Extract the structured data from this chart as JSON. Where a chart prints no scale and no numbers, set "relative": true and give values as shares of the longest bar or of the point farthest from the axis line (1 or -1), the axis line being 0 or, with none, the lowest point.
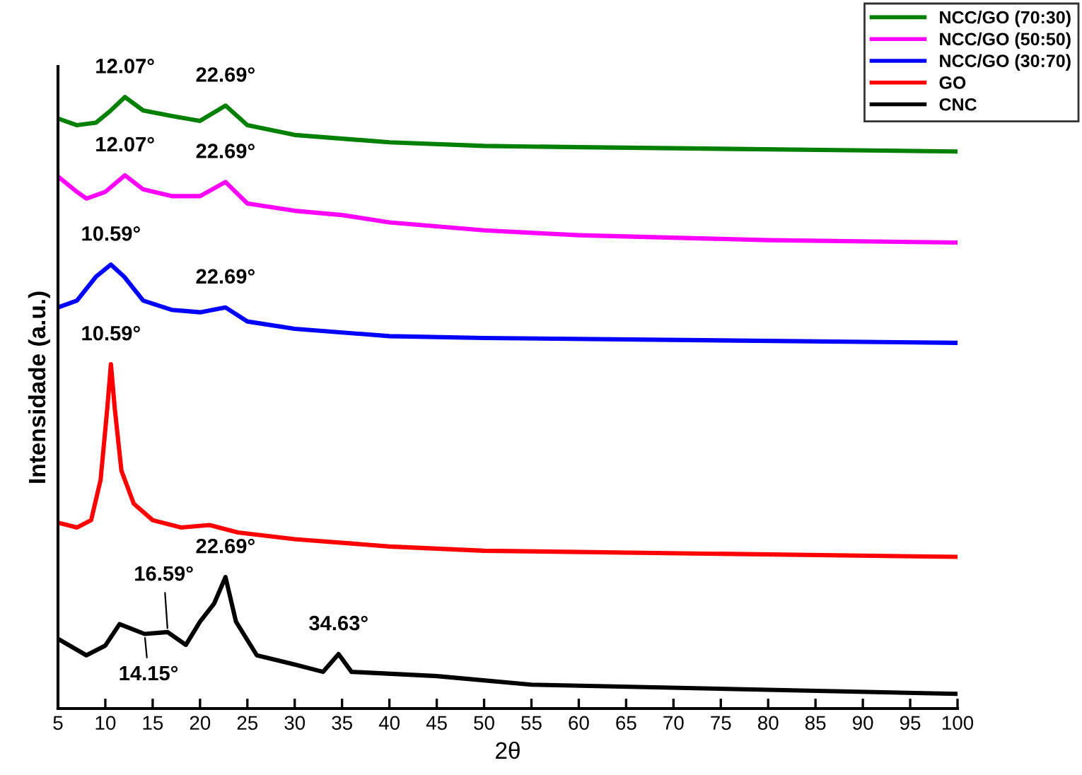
{
  "chart_data": {
    "type": "line",
    "relative": true,
    "xlabel": "2θ",
    "ylabel": "Intensidade (a.u.)",
    "xlim": [
      5,
      100
    ],
    "xticks": [
      5,
      10,
      15,
      20,
      25,
      30,
      35,
      40,
      45,
      50,
      55,
      60,
      65,
      70,
      75,
      80,
      85,
      90,
      95,
      100
    ],
    "legend": "top right",
    "grid": false,
    "marker": "none",
    "line_style": "solid",
    "series": [
      {
        "name": "NCC/GO (70:30)",
        "color": "#008000",
        "x": [
          5,
          7,
          9,
          10.5,
          12.07,
          14,
          17,
          20,
          22.69,
          25,
          30,
          40,
          50,
          60,
          100
        ],
        "values": [
          0.965,
          0.954,
          0.958,
          0.977,
          1.0,
          0.978,
          0.969,
          0.961,
          0.986,
          0.954,
          0.938,
          0.926,
          0.92,
          0.918,
          0.911
        ]
      },
      {
        "name": "NCC/GO (50:50)",
        "color": "#ff00ff",
        "x": [
          5,
          7,
          8,
          10,
          12.07,
          14,
          17,
          20,
          22.69,
          25,
          30,
          35,
          40,
          50,
          60,
          80,
          100
        ],
        "values": [
          0.87,
          0.845,
          0.834,
          0.845,
          0.872,
          0.849,
          0.838,
          0.838,
          0.861,
          0.826,
          0.814,
          0.807,
          0.795,
          0.782,
          0.774,
          0.766,
          0.762
        ]
      },
      {
        "name": "NCC/GO (30:70)",
        "color": "#0000ff",
        "x": [
          5,
          7,
          9,
          10.59,
          12,
          14,
          17,
          20,
          22.69,
          25,
          30,
          40,
          50,
          100
        ],
        "values": [
          0.656,
          0.667,
          0.706,
          0.726,
          0.706,
          0.667,
          0.652,
          0.648,
          0.656,
          0.633,
          0.621,
          0.609,
          0.606,
          0.598
        ]
      },
      {
        "name": "GO",
        "color": "#ff0000",
        "x": [
          5,
          7,
          8.5,
          9.5,
          10.2,
          10.59,
          11,
          11.7,
          13,
          15,
          18,
          21,
          24,
          30,
          40,
          50,
          100
        ],
        "values": [
          0.304,
          0.296,
          0.308,
          0.374,
          0.49,
          0.563,
          0.49,
          0.389,
          0.335,
          0.308,
          0.296,
          0.3,
          0.288,
          0.277,
          0.265,
          0.258,
          0.248
        ]
      },
      {
        "name": "CNC",
        "color": "#000000",
        "x": [
          5,
          8,
          10,
          11.5,
          14.15,
          16.59,
          18.5,
          20,
          21.5,
          22.69,
          23.8,
          26,
          30,
          33,
          34.63,
          36,
          45,
          55,
          100
        ],
        "values": [
          0.114,
          0.087,
          0.103,
          0.138,
          0.122,
          0.125,
          0.104,
          0.142,
          0.172,
          0.215,
          0.142,
          0.087,
          0.072,
          0.06,
          0.089,
          0.06,
          0.053,
          0.039,
          0.024
        ]
      }
    ],
    "annotations": [
      {
        "text": "12.07°",
        "x": 12.07,
        "y": 1.0
      },
      {
        "text": "22.69°",
        "x": 22.69,
        "y": 0.986
      },
      {
        "text": "12.07°",
        "x": 12.07,
        "y": 0.872
      },
      {
        "text": "22.69°",
        "x": 22.69,
        "y": 0.861
      },
      {
        "text": "10.59°",
        "x": 10.59,
        "y": 0.726
      },
      {
        "text": "22.69°",
        "x": 22.69,
        "y": 0.656
      },
      {
        "text": "10.59°",
        "x": 10.59,
        "y": 0.563
      },
      {
        "text": "22.69°",
        "x": 22.69,
        "y": 0.215
      },
      {
        "text": "16.59°",
        "x": 16.59,
        "y": 0.125
      },
      {
        "text": "14.15°",
        "x": 14.15,
        "y": 0.122
      },
      {
        "text": "34.63°",
        "x": 34.63,
        "y": 0.089
      }
    ]
  }
}
